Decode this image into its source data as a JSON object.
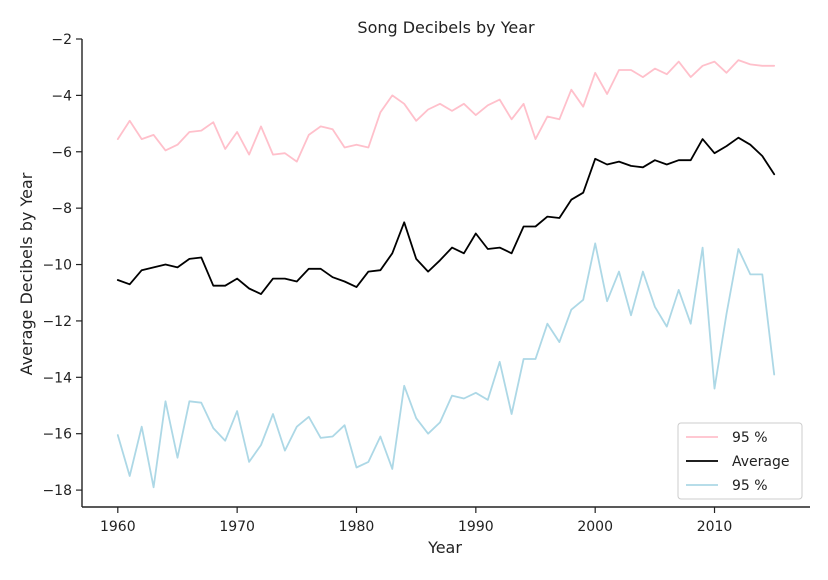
{
  "chart_data": {
    "type": "line",
    "title": "Song Decibels by Year",
    "xlabel": "Year",
    "ylabel": "Average Decibels by Year",
    "xlim": [
      1957,
      2018
    ],
    "ylim": [
      -18.6,
      -2
    ],
    "xticks": [
      1960,
      1970,
      1980,
      1990,
      2000,
      2010
    ],
    "yticks": [
      -18,
      -16,
      -14,
      -12,
      -10,
      -8,
      -6,
      -4,
      -2
    ],
    "grid": false,
    "legend_position": "lower-right",
    "x": [
      1960,
      1961,
      1962,
      1963,
      1964,
      1965,
      1966,
      1967,
      1968,
      1969,
      1970,
      1971,
      1972,
      1973,
      1974,
      1975,
      1976,
      1977,
      1978,
      1979,
      1980,
      1981,
      1982,
      1983,
      1984,
      1985,
      1986,
      1987,
      1988,
      1989,
      1990,
      1991,
      1992,
      1993,
      1994,
      1995,
      1996,
      1997,
      1998,
      1999,
      2000,
      2001,
      2002,
      2003,
      2004,
      2005,
      2006,
      2007,
      2008,
      2009,
      2010,
      2011,
      2012,
      2013,
      2014,
      2015
    ],
    "series": [
      {
        "name": "95 %",
        "color": "#ffc0cb",
        "values": [
          -5.55,
          -4.9,
          -5.55,
          -5.4,
          -5.95,
          -5.75,
          -5.3,
          -5.25,
          -4.95,
          -5.9,
          -5.3,
          -6.1,
          -5.1,
          -6.1,
          -6.05,
          -6.35,
          -5.4,
          -5.1,
          -5.2,
          -5.85,
          -5.75,
          -5.85,
          -4.6,
          -4.0,
          -4.3,
          -4.9,
          -4.5,
          -4.3,
          -4.55,
          -4.3,
          -4.7,
          -4.35,
          -4.15,
          -4.85,
          -4.3,
          -5.55,
          -4.75,
          -4.85,
          -3.8,
          -4.4,
          -3.2,
          -3.95,
          -3.1,
          -3.1,
          -3.35,
          -3.05,
          -3.25,
          -2.8,
          -3.35,
          -2.95,
          -2.8,
          -3.2,
          -2.75,
          -2.9,
          -2.95,
          -2.95
        ]
      },
      {
        "name": "Average",
        "color": "#000000",
        "values": [
          -10.55,
          -10.7,
          -10.2,
          -10.1,
          -10.0,
          -10.1,
          -9.8,
          -9.75,
          -10.75,
          -10.75,
          -10.5,
          -10.85,
          -11.05,
          -10.5,
          -10.5,
          -10.6,
          -10.15,
          -10.15,
          -10.45,
          -10.6,
          -10.8,
          -10.25,
          -10.2,
          -9.6,
          -8.5,
          -9.8,
          -10.25,
          -9.85,
          -9.4,
          -9.6,
          -8.9,
          -9.45,
          -9.4,
          -9.6,
          -8.65,
          -8.65,
          -8.3,
          -8.35,
          -7.7,
          -7.45,
          -6.25,
          -6.45,
          -6.35,
          -6.5,
          -6.55,
          -6.3,
          -6.45,
          -6.3,
          -6.3,
          -5.55,
          -6.05,
          -5.8,
          -5.5,
          -5.75,
          -6.15,
          -6.8
        ]
      },
      {
        "name": "95 %",
        "color": "#add8e6",
        "values": [
          -16.05,
          -17.5,
          -15.75,
          -17.9,
          -14.85,
          -16.85,
          -14.85,
          -14.9,
          -15.8,
          -16.25,
          -15.2,
          -17.0,
          -16.4,
          -15.3,
          -16.6,
          -15.75,
          -15.4,
          -16.15,
          -16.1,
          -15.7,
          -17.2,
          -17.0,
          -16.1,
          -17.25,
          -14.3,
          -15.45,
          -16.0,
          -15.6,
          -14.65,
          -14.75,
          -14.55,
          -14.8,
          -13.45,
          -15.3,
          -13.35,
          -13.35,
          -12.1,
          -12.75,
          -11.6,
          -11.25,
          -9.25,
          -11.3,
          -10.25,
          -11.8,
          -10.25,
          -11.5,
          -12.2,
          -10.9,
          -12.1,
          -9.4,
          -14.4,
          -11.75,
          -9.45,
          -10.35,
          -10.35,
          -13.9
        ]
      }
    ]
  }
}
